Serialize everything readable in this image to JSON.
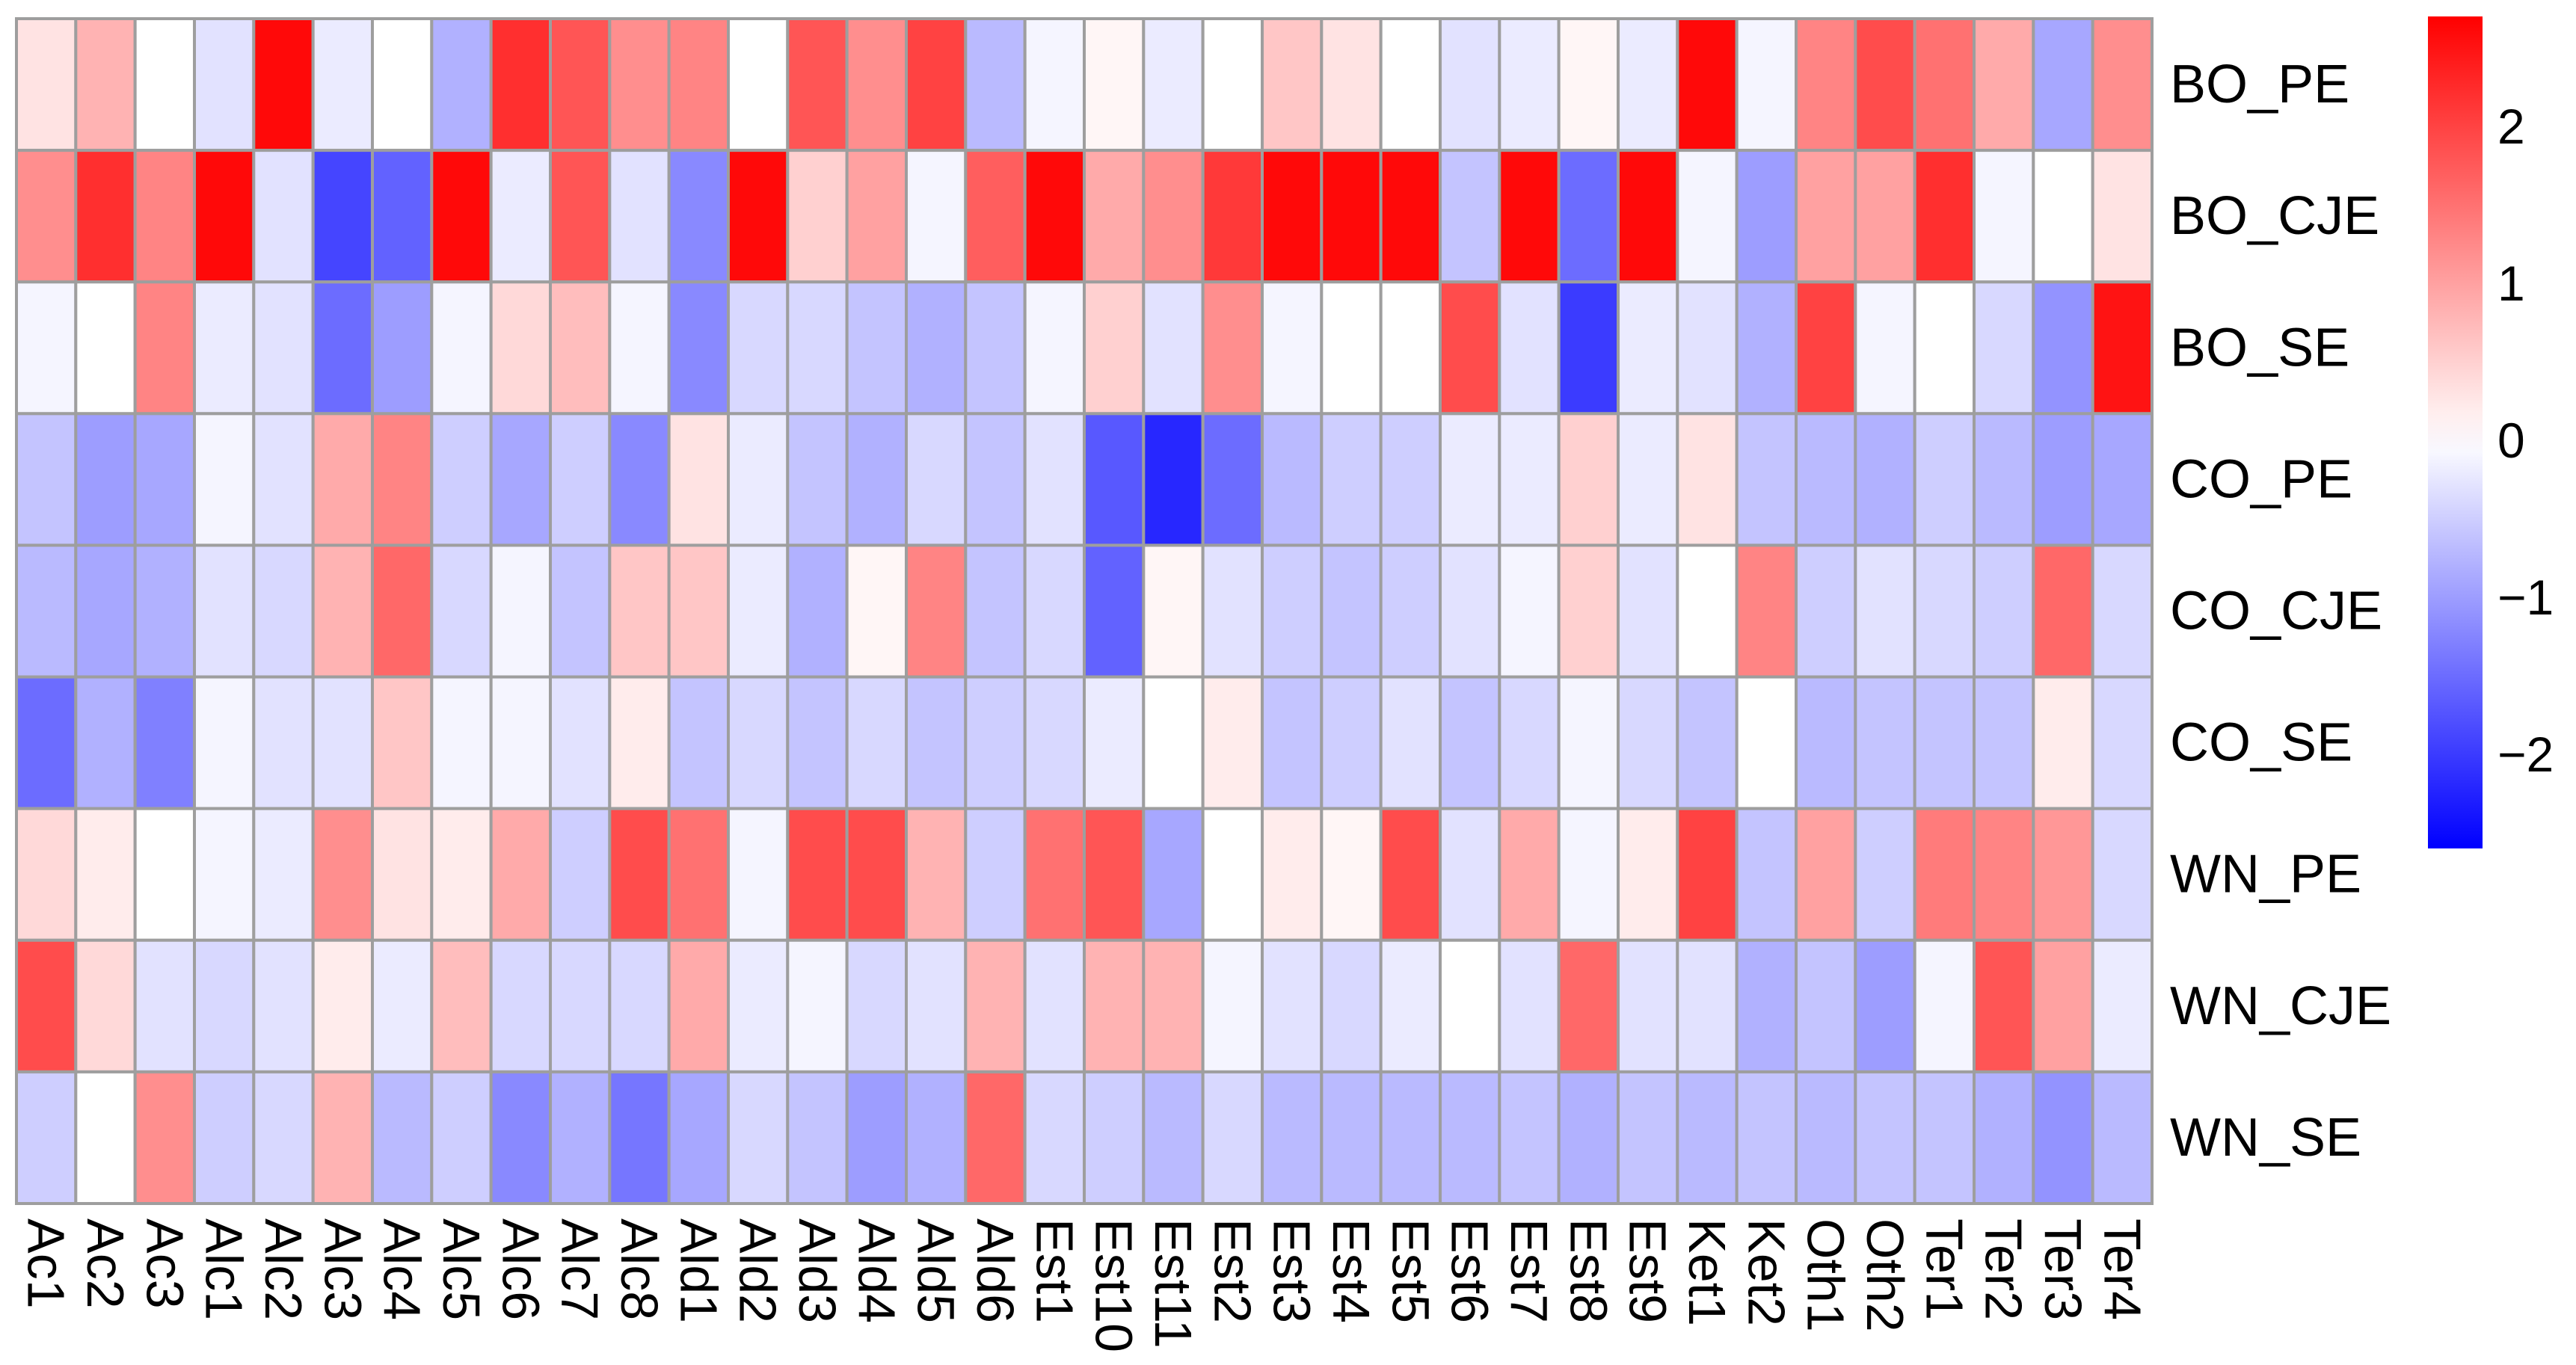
{
  "chart_data": {
    "type": "heatmap",
    "title": "",
    "rows": [
      "BO_PE",
      "BO_CJE",
      "BO_SE",
      "CO_PE",
      "CO_CJE",
      "CO_SE",
      "WN_PE",
      "WN_CJE",
      "WN_SE"
    ],
    "columns": [
      "Ac1",
      "Ac2",
      "Ac3",
      "Alc1",
      "Alc2",
      "Alc3",
      "Alc4",
      "Alc5",
      "Alc6",
      "Alc7",
      "Alc8",
      "Ald1",
      "Ald2",
      "Ald3",
      "Ald4",
      "Ald5",
      "Ald6",
      "Est1",
      "Est10",
      "Est11",
      "Est2",
      "Est3",
      "Est4",
      "Est5",
      "Est6",
      "Est7",
      "Est8",
      "Est9",
      "Ket1",
      "Ket2",
      "Oth1",
      "Oth2",
      "Ter1",
      "Ter2",
      "Ter3",
      "Ter4"
    ],
    "values": [
      [
        0.3,
        0.8,
        0.0,
        -0.3,
        2.6,
        -0.2,
        0.0,
        -0.8,
        2.2,
        1.8,
        1.2,
        1.3,
        0.0,
        1.8,
        1.2,
        2.0,
        -0.7,
        -0.1,
        0.1,
        -0.2,
        0.0,
        0.6,
        0.3,
        0.0,
        -0.3,
        -0.2,
        0.1,
        -0.2,
        2.6,
        -0.1,
        1.3,
        1.9,
        1.5,
        0.9,
        -0.9,
        1.2
      ],
      [
        1.2,
        2.2,
        1.3,
        2.6,
        -0.3,
        -1.9,
        -1.6,
        2.6,
        -0.2,
        1.8,
        -0.3,
        -1.2,
        2.6,
        0.5,
        1.0,
        -0.1,
        1.7,
        2.6,
        0.9,
        1.2,
        2.1,
        2.6,
        2.6,
        2.6,
        -0.6,
        2.6,
        -1.5,
        2.6,
        -0.1,
        -1.0,
        1.0,
        1.0,
        2.2,
        -0.1,
        0.0,
        0.3
      ],
      [
        -0.1,
        0.0,
        1.3,
        -0.2,
        -0.3,
        -1.5,
        -1.0,
        -0.1,
        0.4,
        0.7,
        -0.1,
        -1.2,
        -0.4,
        -0.4,
        -0.6,
        -0.8,
        -0.6,
        -0.1,
        0.5,
        -0.3,
        1.2,
        -0.1,
        0.0,
        0.0,
        1.9,
        -0.3,
        -2.0,
        -0.2,
        -0.3,
        -0.8,
        2.0,
        -0.1,
        0.0,
        -0.4,
        -1.1,
        2.5
      ],
      [
        -0.6,
        -1.0,
        -0.9,
        -0.1,
        -0.3,
        0.9,
        1.3,
        -0.5,
        -0.9,
        -0.5,
        -1.2,
        0.3,
        -0.2,
        -0.6,
        -0.8,
        -0.4,
        -0.6,
        -0.3,
        -1.7,
        -2.2,
        -1.5,
        -0.7,
        -0.5,
        -0.5,
        -0.2,
        -0.2,
        0.5,
        -0.2,
        0.3,
        -0.6,
        -0.7,
        -0.8,
        -0.5,
        -0.7,
        -1.0,
        -0.9
      ],
      [
        -0.7,
        -0.9,
        -0.8,
        -0.3,
        -0.4,
        0.8,
        1.6,
        -0.4,
        -0.1,
        -0.6,
        0.6,
        0.6,
        -0.2,
        -0.8,
        0.1,
        1.3,
        -0.6,
        -0.4,
        -1.6,
        0.1,
        -0.3,
        -0.5,
        -0.6,
        -0.5,
        -0.3,
        -0.1,
        0.5,
        -0.3,
        0.0,
        1.3,
        -0.5,
        -0.3,
        -0.4,
        -0.5,
        1.6,
        -0.4
      ],
      [
        -1.5,
        -0.8,
        -1.3,
        -0.1,
        -0.3,
        -0.3,
        0.6,
        -0.1,
        -0.1,
        -0.3,
        0.2,
        -0.6,
        -0.4,
        -0.6,
        -0.4,
        -0.6,
        -0.5,
        -0.4,
        -0.2,
        0.0,
        0.2,
        -0.6,
        -0.5,
        -0.3,
        -0.6,
        -0.4,
        -0.1,
        -0.4,
        -0.6,
        0.0,
        -0.7,
        -0.6,
        -0.6,
        -0.6,
        0.2,
        -0.4
      ],
      [
        0.4,
        0.2,
        0.0,
        -0.1,
        -0.2,
        1.2,
        0.3,
        0.2,
        0.9,
        -0.5,
        1.9,
        1.5,
        -0.1,
        1.9,
        1.9,
        0.8,
        -0.5,
        1.5,
        1.8,
        -0.9,
        0.0,
        0.2,
        0.1,
        1.9,
        -0.3,
        0.9,
        -0.1,
        0.2,
        2.0,
        -0.6,
        1.0,
        -0.5,
        1.4,
        1.3,
        1.1,
        -0.4
      ],
      [
        1.9,
        0.4,
        -0.3,
        -0.4,
        -0.3,
        0.2,
        -0.2,
        0.7,
        -0.4,
        -0.4,
        -0.4,
        0.9,
        -0.2,
        -0.1,
        -0.4,
        -0.3,
        0.8,
        -0.3,
        0.8,
        0.8,
        -0.1,
        -0.3,
        -0.4,
        -0.2,
        0.0,
        -0.3,
        1.6,
        -0.3,
        -0.3,
        -0.8,
        -0.6,
        -1.0,
        -0.1,
        1.8,
        1.0,
        -0.2
      ],
      [
        -0.5,
        0.0,
        1.2,
        -0.5,
        -0.4,
        0.8,
        -0.7,
        -0.5,
        -1.2,
        -0.8,
        -1.4,
        -0.9,
        -0.4,
        -0.6,
        -1.0,
        -0.8,
        1.6,
        -0.4,
        -0.5,
        -0.7,
        -0.4,
        -0.7,
        -0.7,
        -0.7,
        -0.7,
        -0.6,
        -0.8,
        -0.6,
        -0.7,
        -0.6,
        -0.7,
        -0.6,
        -0.6,
        -0.8,
        -1.1,
        -0.7
      ]
    ],
    "color_scale": {
      "min": -2.6,
      "max": 2.7,
      "low_color": "#0000ff",
      "mid_color": "#ffffff",
      "high_color": "#ff0000",
      "ticks": [
        2,
        1,
        0,
        -1,
        -2
      ],
      "tick_labels": [
        "2",
        "1",
        "0",
        "−1",
        "−2"
      ]
    },
    "grid_color": "#9e9e9e"
  }
}
